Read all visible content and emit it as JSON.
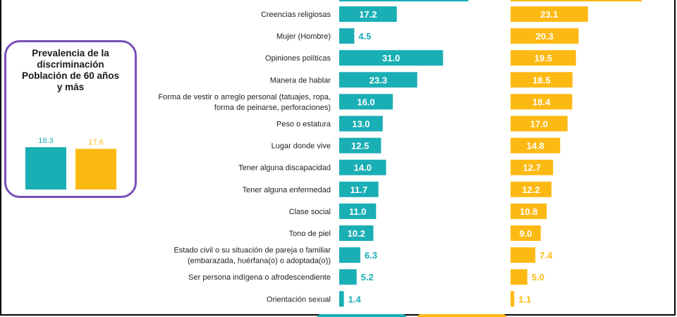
{
  "colors": {
    "teal": "#1aaeb5",
    "gold": "#fdb913",
    "purple": "#7a4fb8"
  },
  "inset": {
    "title_lines": [
      "Prevalencia de la",
      "discriminación",
      "Población de 60 años",
      "y más"
    ],
    "chart_data": {
      "type": "bar",
      "categories": [
        "",
        ""
      ],
      "values": [
        18.3,
        17.6
      ],
      "value_labels": [
        "18.3",
        "17.6"
      ],
      "ylim": [
        0,
        18.3
      ]
    }
  },
  "chart_data": {
    "type": "bar",
    "orientation": "horizontal",
    "title": "",
    "categories": [
      [
        "Creencias religiosas"
      ],
      [
        "Mujer (Hombre)"
      ],
      [
        "Opiniones políticas"
      ],
      [
        "Manera de hablar"
      ],
      [
        "Forma de vestir o arreglo personal (tatuajes, ropa,",
        "forma de peinarse, perforaciones)"
      ],
      [
        "Peso o estatura"
      ],
      [
        "Lugar donde vive"
      ],
      [
        "Tener alguna discapacidad"
      ],
      [
        "Tener alguna enfermedad"
      ],
      [
        "Clase social"
      ],
      [
        "Tono de piel"
      ],
      [
        "Estado civil o su situación de pareja o familiar",
        "(embarazada, huérfana(o) o adoptada(o))"
      ],
      [
        "Ser persona indígena o afrodescendiente"
      ],
      [
        "Orientación sexual"
      ]
    ],
    "series": [
      {
        "values": [
          17.2,
          4.5,
          31.0,
          23.3,
          16.0,
          13.0,
          12.5,
          14.0,
          11.7,
          11.0,
          10.2,
          6.3,
          5.2,
          1.4
        ]
      },
      {
        "values": [
          23.1,
          20.3,
          19.5,
          18.5,
          18.4,
          17.0,
          14.8,
          12.7,
          12.2,
          10.8,
          9.0,
          7.4,
          5.0,
          1.1
        ]
      }
    ],
    "value_labels": [
      [
        "17.2",
        "4.5",
        "31.0",
        "23.3",
        "16.0",
        "13.0",
        "12.5",
        "14.0",
        "11.7",
        "11.0",
        "10.2",
        "6.3",
        "5.2",
        "1.4"
      ],
      [
        "23.1",
        "20.3",
        "19.5",
        "18.5",
        "18.4",
        "17.0",
        "14.8",
        "12.7",
        "12.2",
        "10.8",
        "9.0",
        "7.4",
        "5.0",
        "1.1"
      ]
    ],
    "partially_visible_rows": "one bar per series cut off above the first row and one below the last row"
  }
}
